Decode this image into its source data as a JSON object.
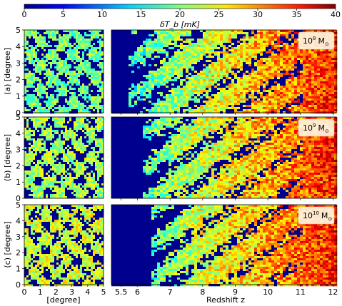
{
  "chart_data": {
    "type": "heatmap",
    "colorbar": {
      "label": "δT_b [mK]",
      "min": 0,
      "max": 40,
      "ticks": [
        "0",
        "5",
        "10",
        "15",
        "20",
        "25",
        "30",
        "35",
        "40"
      ],
      "colormap": "jet"
    },
    "rows": [
      {
        "label": "(a) [degree]",
        "mass": "10",
        "mass_exp": "8",
        "mass_unit": "M",
        "mass_sub": "⊙",
        "transition_z": 5.9
      },
      {
        "label": "(b) [degree]",
        "mass": "10",
        "mass_exp": "9",
        "mass_unit": "M",
        "mass_sub": "⊙",
        "transition_z": 6.3
      },
      {
        "label": "(c) [degree]",
        "mass": "10",
        "mass_exp": "10",
        "mass_unit": "M",
        "mass_sub": "⊙",
        "transition_z": 6.6
      }
    ],
    "left_panels": {
      "xlabel": "[degree]",
      "xlim": [
        0,
        5
      ],
      "ylim": [
        0,
        5
      ],
      "xticks": [
        "0",
        "1",
        "2",
        "3",
        "4",
        "5"
      ],
      "yticks": [
        "0",
        "1",
        "2",
        "3",
        "4",
        "5"
      ]
    },
    "right_panels": {
      "xlabel": "Redshift z",
      "xlim": [
        5.2,
        12.1
      ],
      "xticks": [
        {
          "value": 5.5,
          "label": "5.5"
        },
        {
          "value": 6,
          "label": "6"
        },
        {
          "value": 7,
          "label": "7"
        },
        {
          "value": 8,
          "label": "8"
        },
        {
          "value": 9,
          "label": "9"
        },
        {
          "value": 10,
          "label": "10"
        },
        {
          "value": 11,
          "label": "11"
        },
        {
          "value": 12,
          "label": "12"
        }
      ]
    }
  }
}
